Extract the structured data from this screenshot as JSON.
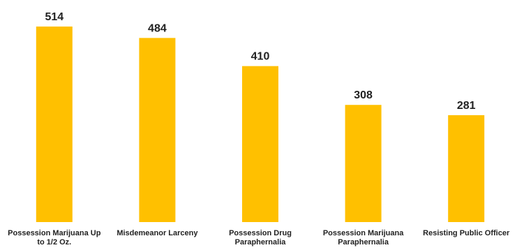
{
  "chart_data": {
    "type": "bar",
    "categories": [
      "Possession Marijuana Up to 1/2 Oz.",
      "Misdemeanor Larceny",
      "Possession Drug Paraphernalia",
      "Possession Marijuana Paraphernalia",
      "Resisting Public Officer"
    ],
    "values": [
      514,
      484,
      410,
      308,
      281
    ],
    "color": "#ffc000"
  }
}
